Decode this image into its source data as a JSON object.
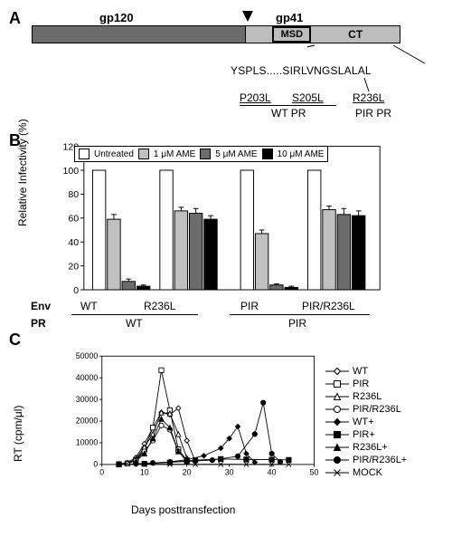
{
  "panelA": {
    "gp120": "gp120",
    "gp41": "gp41",
    "msd": "MSD",
    "ct": "CT",
    "sequence": "YSPLS.....SIRLVNGSLALAL",
    "mutations": {
      "p203l": "P203L",
      "s205l": "S205L",
      "r236l": "R236L"
    },
    "pr_labels": {
      "wt": "WT PR",
      "pir": "PIR PR"
    }
  },
  "panelB": {
    "ylabel": "Relative Infectivity (%)",
    "ylim": [
      0,
      120
    ],
    "ytick_step": 20,
    "legend": {
      "untreated": "Untreated",
      "ame1": "1 μM AME",
      "ame5": "5 μM AME",
      "ame10": "10 μM AME"
    },
    "legend_colors": {
      "untreated": "#ffffff",
      "ame1": "#c0c0c0",
      "ame5": "#6b6b6b",
      "ame10": "#000000"
    },
    "groups": [
      {
        "env": "WT",
        "values": [
          100,
          59,
          7,
          3
        ],
        "errors": [
          0,
          4,
          2,
          1
        ]
      },
      {
        "env": "R236L",
        "values": [
          100,
          66,
          64,
          59
        ],
        "errors": [
          0,
          3,
          4,
          3
        ]
      },
      {
        "env": "PIR",
        "values": [
          100,
          47,
          4,
          2
        ],
        "errors": [
          0,
          3,
          1,
          1
        ]
      },
      {
        "env": "PIR/R236L",
        "values": [
          100,
          67,
          63,
          62
        ],
        "errors": [
          0,
          3,
          5,
          4
        ]
      }
    ],
    "pr_groups": [
      "WT",
      "PIR"
    ],
    "env_label": "Env",
    "pr_label": "PR"
  },
  "panelC": {
    "ylabel": "RT (cpm/μl)",
    "xlabel": "Days posttransfection",
    "ylim": [
      0,
      50000
    ],
    "ytick_step": 10000,
    "xlim": [
      0,
      50
    ],
    "xtick_step": 10,
    "series": [
      {
        "name": "WT",
        "marker": "diamond-open",
        "color": "#000000"
      },
      {
        "name": "PIR",
        "marker": "square-open",
        "color": "#000000"
      },
      {
        "name": "R236L",
        "marker": "triangle-open",
        "color": "#000000"
      },
      {
        "name": "PIR/R236L",
        "marker": "circle-open",
        "color": "#000000"
      },
      {
        "name": "WT+",
        "marker": "diamond",
        "color": "#000000"
      },
      {
        "name": "PIR+",
        "marker": "square",
        "color": "#000000"
      },
      {
        "name": "R236L+",
        "marker": "triangle",
        "color": "#000000"
      },
      {
        "name": "PIR/R236L+",
        "marker": "circle",
        "color": "#000000"
      },
      {
        "name": "MOCK",
        "marker": "x",
        "color": "#000000"
      }
    ],
    "data": {
      "WT": [
        [
          4,
          200
        ],
        [
          6,
          800
        ],
        [
          8,
          3200
        ],
        [
          10,
          9500
        ],
        [
          12,
          17000
        ],
        [
          14,
          24000
        ],
        [
          16,
          23000
        ],
        [
          18,
          26000
        ],
        [
          20,
          11000
        ],
        [
          22,
          1500
        ]
      ],
      "PIR": [
        [
          4,
          100
        ],
        [
          6,
          500
        ],
        [
          8,
          2000
        ],
        [
          10,
          7000
        ],
        [
          12,
          17000
        ],
        [
          14,
          43500
        ],
        [
          16,
          25000
        ],
        [
          18,
          7000
        ],
        [
          20,
          2000
        ]
      ],
      "R236L": [
        [
          4,
          150
        ],
        [
          6,
          600
        ],
        [
          8,
          2500
        ],
        [
          10,
          8000
        ],
        [
          12,
          14000
        ],
        [
          14,
          24000
        ],
        [
          16,
          23500
        ],
        [
          18,
          14000
        ],
        [
          20,
          3000
        ]
      ],
      "PIR/R236L": [
        [
          4,
          100
        ],
        [
          6,
          400
        ],
        [
          8,
          1800
        ],
        [
          10,
          6000
        ],
        [
          12,
          11000
        ],
        [
          14,
          18000
        ],
        [
          16,
          16000
        ],
        [
          18,
          6000
        ],
        [
          20,
          1500
        ]
      ],
      "WT+": [
        [
          4,
          50
        ],
        [
          8,
          200
        ],
        [
          12,
          600
        ],
        [
          16,
          1200
        ],
        [
          20,
          2200
        ],
        [
          24,
          4000
        ],
        [
          28,
          7500
        ],
        [
          30,
          12000
        ],
        [
          32,
          17500
        ],
        [
          34,
          5000
        ],
        [
          36,
          1000
        ]
      ],
      "PIR+": [
        [
          4,
          50
        ],
        [
          10,
          300
        ],
        [
          16,
          900
        ],
        [
          22,
          2000
        ],
        [
          28,
          2500
        ],
        [
          34,
          2300
        ],
        [
          40,
          2200
        ],
        [
          44,
          2100
        ]
      ],
      "R236L+": [
        [
          4,
          100
        ],
        [
          8,
          1500
        ],
        [
          10,
          5000
        ],
        [
          12,
          12000
        ],
        [
          14,
          21000
        ],
        [
          16,
          17000
        ],
        [
          18,
          6000
        ],
        [
          20,
          1500
        ]
      ],
      "PIR/R236L+": [
        [
          4,
          80
        ],
        [
          8,
          300
        ],
        [
          12,
          700
        ],
        [
          16,
          1100
        ],
        [
          20,
          1400
        ],
        [
          26,
          2000
        ],
        [
          32,
          3800
        ],
        [
          36,
          14000
        ],
        [
          38,
          28500
        ],
        [
          40,
          5000
        ],
        [
          42,
          1200
        ]
      ],
      "MOCK": [
        [
          4,
          50
        ],
        [
          10,
          60
        ],
        [
          16,
          55
        ],
        [
          22,
          50
        ],
        [
          28,
          55
        ],
        [
          34,
          50
        ],
        [
          40,
          55
        ],
        [
          44,
          50
        ]
      ]
    }
  }
}
